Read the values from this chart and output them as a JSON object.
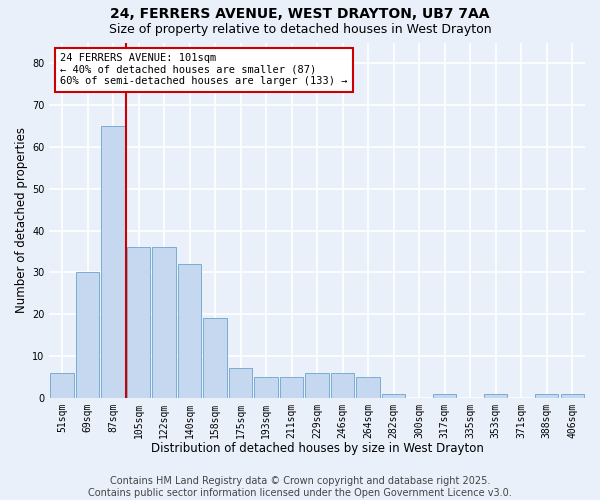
{
  "title1": "24, FERRERS AVENUE, WEST DRAYTON, UB7 7AA",
  "title2": "Size of property relative to detached houses in West Drayton",
  "xlabel": "Distribution of detached houses by size in West Drayton",
  "ylabel": "Number of detached properties",
  "categories": [
    "51sqm",
    "69sqm",
    "87sqm",
    "105sqm",
    "122sqm",
    "140sqm",
    "158sqm",
    "175sqm",
    "193sqm",
    "211sqm",
    "229sqm",
    "246sqm",
    "264sqm",
    "282sqm",
    "300sqm",
    "317sqm",
    "335sqm",
    "353sqm",
    "371sqm",
    "388sqm",
    "406sqm"
  ],
  "values": [
    6,
    30,
    65,
    36,
    36,
    32,
    19,
    7,
    5,
    5,
    6,
    6,
    5,
    1,
    0,
    1,
    0,
    1,
    0,
    1,
    1
  ],
  "bar_color": "#c5d8f0",
  "bar_edge_color": "#7aadd4",
  "annotation_text": "24 FERRERS AVENUE: 101sqm\n← 40% of detached houses are smaller (87)\n60% of semi-detached houses are larger (133) →",
  "annotation_box_color": "#ffffff",
  "annotation_edge_color": "#cc0000",
  "vline_color": "#cc0000",
  "ylim": [
    0,
    85
  ],
  "yticks": [
    0,
    10,
    20,
    30,
    40,
    50,
    60,
    70,
    80
  ],
  "footer1": "Contains HM Land Registry data © Crown copyright and database right 2025.",
  "footer2": "Contains public sector information licensed under the Open Government Licence v3.0.",
  "bg_color": "#eaf0fa",
  "grid_color": "#ffffff",
  "title1_fontsize": 10,
  "title2_fontsize": 9,
  "xlabel_fontsize": 8.5,
  "ylabel_fontsize": 8.5,
  "tick_fontsize": 7,
  "footer_fontsize": 7,
  "ann_fontsize": 7.5
}
